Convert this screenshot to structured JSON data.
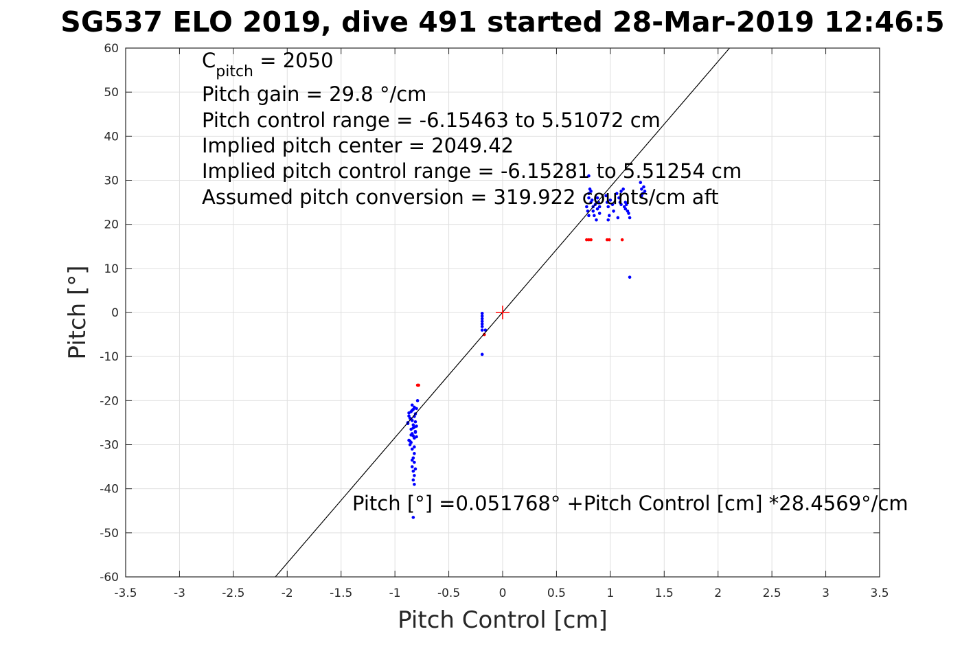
{
  "chart_data": {
    "type": "scatter",
    "title": "SG537 ELO 2019, dive 491 started 28-Mar-2019 12:46:5",
    "xlabel": "Pitch Control [cm]",
    "ylabel": "Pitch [°]",
    "xlim": [
      -3.5,
      3.5
    ],
    "ylim": [
      -60,
      60
    ],
    "xticks": [
      "-3.5",
      "-3",
      "-2.5",
      "-2",
      "-1.5",
      "-1",
      "-0.5",
      "0",
      "0.5",
      "1",
      "1.5",
      "2",
      "2.5",
      "3",
      "3.5"
    ],
    "yticks": [
      "60",
      "50",
      "40",
      "30",
      "20",
      "10",
      "0",
      "-10",
      "-20",
      "-30",
      "-40",
      "-50",
      "-60"
    ],
    "grid": true,
    "annotations": {
      "c_pitch_symbol": "C",
      "c_pitch_subscript": "pitch",
      "c_pitch_value": " = 2050",
      "pitch_gain": "Pitch gain = 29.8 °/cm",
      "control_range": "Pitch control range = -6.15463 to 5.51072 cm",
      "implied_center": "Implied pitch center = 2049.42",
      "implied_range": "Implied pitch control range = -6.15281 to 5.51254 cm",
      "assumed_conversion": "Assumed pitch conversion = 319.922 counts/cm aft",
      "fit_equation": "Pitch [°] =0.051768° +Pitch Control [cm] *28.4569°/cm"
    },
    "fit_line": {
      "intercept": 0.051768,
      "slope": 28.4569,
      "color": "#000000"
    },
    "center_marker": {
      "x": 0,
      "y": 0,
      "color": "#ff0000"
    },
    "series": [
      {
        "color": "#0000ff",
        "points": [
          [
            -0.84,
            -21
          ],
          [
            -0.82,
            -21.5
          ],
          [
            -0.83,
            -22
          ],
          [
            -0.85,
            -22.5
          ],
          [
            -0.81,
            -23
          ],
          [
            -0.87,
            -23.5
          ],
          [
            -0.86,
            -24
          ],
          [
            -0.84,
            -24.5
          ],
          [
            -0.88,
            -25
          ],
          [
            -0.83,
            -25.5
          ],
          [
            -0.82,
            -26
          ],
          [
            -0.85,
            -26.5
          ],
          [
            -0.81,
            -27
          ],
          [
            -0.84,
            -27.5
          ],
          [
            -0.83,
            -28
          ],
          [
            -0.82,
            -28.5
          ],
          [
            -0.87,
            -29
          ],
          [
            -0.85,
            -29.5
          ],
          [
            -0.86,
            -30
          ],
          [
            -0.84,
            -22.2
          ],
          [
            -0.82,
            -23.6
          ],
          [
            -0.81,
            -24.8
          ],
          [
            -0.83,
            -26.2
          ],
          [
            -0.85,
            -27.8
          ],
          [
            -0.82,
            -32
          ],
          [
            -0.83,
            -33
          ],
          [
            -0.82,
            -34
          ],
          [
            -0.84,
            -35
          ],
          [
            -0.83,
            -36
          ],
          [
            -0.82,
            -37
          ],
          [
            -0.83,
            -38
          ],
          [
            -0.82,
            -39
          ],
          [
            -0.84,
            -33.5
          ],
          [
            -0.81,
            -35.5
          ],
          [
            -0.83,
            -46.5
          ],
          [
            -0.79,
            -20
          ],
          [
            -0.8,
            -21.8
          ],
          [
            -0.87,
            -22.8
          ],
          [
            -0.88,
            -25.2
          ],
          [
            -0.8,
            -25.8
          ],
          [
            -0.81,
            -27.2
          ],
          [
            -0.8,
            -28.2
          ],
          [
            -0.86,
            -29.2
          ],
          [
            -0.82,
            -30.5
          ],
          [
            -0.84,
            -31
          ],
          [
            -0.85,
            -24.2
          ],
          [
            -0.19,
            -0.2
          ],
          [
            -0.19,
            -0.8
          ],
          [
            -0.19,
            -1.4
          ],
          [
            -0.19,
            -2
          ],
          [
            -0.19,
            -2.6
          ],
          [
            -0.19,
            -3.2
          ],
          [
            -0.19,
            -4
          ],
          [
            -0.16,
            -4
          ],
          [
            -0.19,
            -9.5
          ],
          [
            0.8,
            26
          ],
          [
            0.82,
            25
          ],
          [
            0.84,
            24
          ],
          [
            0.79,
            23
          ],
          [
            0.85,
            22
          ],
          [
            0.8,
            27
          ],
          [
            0.81,
            28
          ],
          [
            0.83,
            25.5
          ],
          [
            0.86,
            24.5
          ],
          [
            0.88,
            23.5
          ],
          [
            0.9,
            22.5
          ],
          [
            0.87,
            21
          ],
          [
            0.84,
            23
          ],
          [
            0.82,
            27.5
          ],
          [
            0.88,
            26
          ],
          [
            0.9,
            24
          ],
          [
            0.89,
            25
          ],
          [
            0.78,
            24
          ],
          [
            0.8,
            22
          ],
          [
            0.8,
            31
          ],
          [
            0.96,
            26.5
          ],
          [
            0.97,
            25
          ],
          [
            0.98,
            24
          ],
          [
            1.0,
            25.5
          ],
          [
            1.02,
            24.5
          ],
          [
            0.99,
            22
          ],
          [
            0.98,
            21
          ],
          [
            1.03,
            23
          ],
          [
            1.06,
            27
          ],
          [
            1.08,
            26
          ],
          [
            1.1,
            27.5
          ],
          [
            1.12,
            28
          ],
          [
            1.09,
            25
          ],
          [
            1.1,
            24.5
          ],
          [
            1.07,
            21.5
          ],
          [
            1.13,
            24
          ],
          [
            1.14,
            23.5
          ],
          [
            1.15,
            24.5
          ],
          [
            1.16,
            23
          ],
          [
            1.14,
            25
          ],
          [
            1.17,
            22.5
          ],
          [
            1.18,
            21.5
          ],
          [
            1.28,
            29.5
          ],
          [
            1.29,
            28
          ],
          [
            1.3,
            27
          ],
          [
            1.31,
            28.5
          ],
          [
            1.29,
            26.5
          ],
          [
            1.32,
            27.5
          ],
          [
            1.18,
            8
          ]
        ]
      },
      {
        "color": "#ff0000",
        "points": [
          [
            -0.79,
            -16.5
          ],
          [
            -0.78,
            -16.5
          ],
          [
            -0.17,
            -5
          ],
          [
            0.78,
            16.5
          ],
          [
            0.8,
            16.5
          ],
          [
            0.82,
            16.5
          ],
          [
            0.97,
            16.5
          ],
          [
            0.99,
            16.5
          ],
          [
            1.11,
            16.5
          ]
        ]
      }
    ]
  }
}
